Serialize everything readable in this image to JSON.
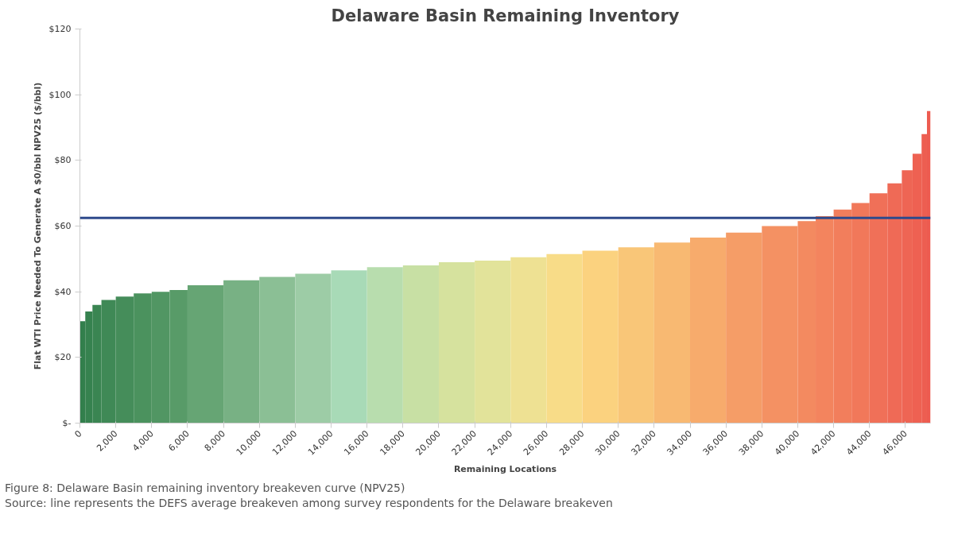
{
  "chart_data": {
    "type": "histogram",
    "title": "Delaware Basin Remaining Inventory",
    "xlabel": "Remaining Locations",
    "ylabel": "Flat WTI Price Needed To Generate A $0/bbl NPV25 ($/bbl)",
    "bins": [
      0,
      300,
      700,
      1200,
      2000,
      3000,
      4000,
      5000,
      6000,
      8000,
      10000,
      12000,
      14000,
      16000,
      18000,
      20000,
      22000,
      24000,
      26000,
      28000,
      30000,
      32000,
      34000,
      36000,
      38000,
      40000,
      41000,
      42000,
      43000,
      44000,
      45000,
      45800,
      46400,
      46900,
      47200,
      47400
    ],
    "values": [
      31,
      34,
      36,
      37.5,
      38.5,
      39.5,
      40,
      40.5,
      42,
      43.5,
      44.5,
      45.5,
      46.5,
      47.5,
      48,
      49,
      49.5,
      50.5,
      51.5,
      52.5,
      53.5,
      55,
      56.5,
      58,
      60,
      61.5,
      63,
      65,
      67,
      70,
      73,
      77,
      82,
      88,
      95
    ],
    "colors": [
      "#327f4c",
      "#36824f",
      "#3a8552",
      "#3f8956",
      "#458d5a",
      "#4b925e",
      "#519663",
      "#589b68",
      "#66a574",
      "#78b184",
      "#8bbf95",
      "#9dcca6",
      "#a8dab7",
      "#b8ddae",
      "#c8e0a4",
      "#d6e29e",
      "#e2e39a",
      "#eee193",
      "#f8dc88",
      "#fbd27f",
      "#f9c678",
      "#f8b972",
      "#f7ab6c",
      "#f59d67",
      "#f49163",
      "#f38a60",
      "#f3845e",
      "#f27e5c",
      "#f1785a",
      "#f07058",
      "#ef6a56",
      "#ee6554",
      "#ee6152",
      "#ed5e51",
      "#ed5b50"
    ],
    "xlim": [
      0,
      47400
    ],
    "ylim": [
      0,
      120
    ],
    "xticks": [
      0,
      {
        "value": 2000,
        "label": "2,000"
      },
      {
        "value": 4000,
        "label": "4,000"
      },
      {
        "value": 6000,
        "label": "6,000"
      },
      {
        "value": 8000,
        "label": "8,000"
      },
      {
        "value": 10000,
        "label": "10,000"
      },
      {
        "value": 12000,
        "label": "12,000"
      },
      {
        "value": 14000,
        "label": "14,000"
      },
      {
        "value": 16000,
        "label": "16,000"
      },
      {
        "value": 18000,
        "label": "18,000"
      },
      {
        "value": 20000,
        "label": "20,000"
      },
      {
        "value": 22000,
        "label": "22,000"
      },
      {
        "value": 24000,
        "label": "24,000"
      },
      {
        "value": 26000,
        "label": "26,000"
      },
      {
        "value": 28000,
        "label": "28,000"
      },
      {
        "value": 30000,
        "label": "30,000"
      },
      {
        "value": 32000,
        "label": "32,000"
      },
      {
        "value": 34000,
        "label": "34,000"
      },
      {
        "value": 36000,
        "label": "36,000"
      },
      {
        "value": 38000,
        "label": "38,000"
      },
      {
        "value": 40000,
        "label": "40,000"
      },
      {
        "value": 42000,
        "label": "42,000"
      },
      {
        "value": 44000,
        "label": "44,000"
      },
      {
        "value": 46000,
        "label": "46,000"
      }
    ],
    "yticks": [
      {
        "value": 0,
        "label": "$-"
      },
      {
        "value": 20,
        "label": "$20"
      },
      {
        "value": 40,
        "label": "$40"
      },
      {
        "value": 60,
        "label": "$60"
      },
      {
        "value": 80,
        "label": "$80"
      },
      {
        "value": 100,
        "label": "$100"
      },
      {
        "value": 120,
        "label": "$120"
      }
    ],
    "ref_lines": [
      {
        "axis": "y",
        "value": 62.5,
        "color": "#2e4a8c"
      }
    ],
    "grid": false,
    "annotations": [
      "Figure 8: Delaware Basin remaining inventory breakeven curve (NPV25)",
      "Source: line represents the DEFS average breakeven among survey respondents for the Delaware breakeven"
    ]
  }
}
